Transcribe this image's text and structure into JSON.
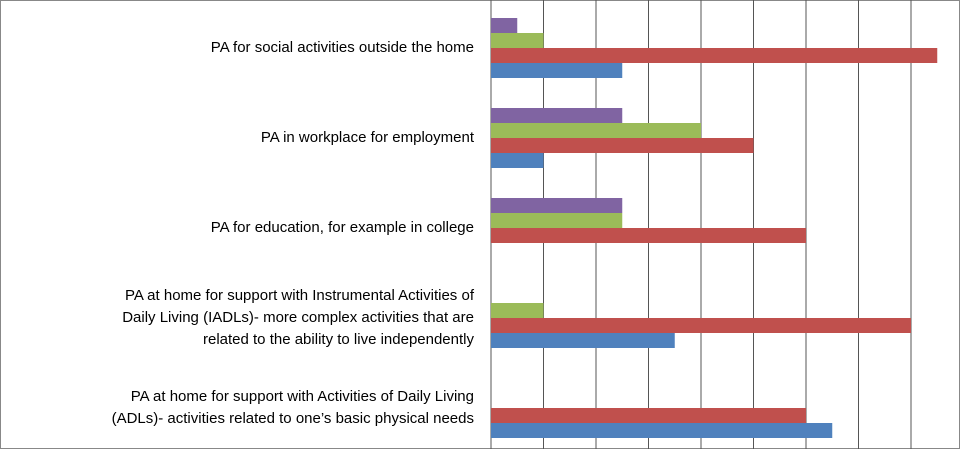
{
  "chart_data": {
    "type": "bar",
    "orientation": "horizontal",
    "categories": [
      "PA for social activities outside the home",
      "PA in workplace for employment",
      "PA for education, for example in college",
      "PA at home for support with Instrumental Activities of\nDaily Living (IADLs)-  more complex activities that are\nrelated to the ability to live independently",
      "PA at home for support with Activities of Daily Living\n(ADLs)- activities related to one’s basic physical needs"
    ],
    "series": [
      {
        "color": "#8064a2",
        "values": [
          0.5,
          2.5,
          2.5,
          0,
          0
        ]
      },
      {
        "color": "#9bbb59",
        "values": [
          1,
          4,
          2.5,
          1,
          0
        ]
      },
      {
        "color": "#c0504d",
        "values": [
          8.5,
          5,
          6,
          8,
          6
        ]
      },
      {
        "color": "#4f81bd",
        "values": [
          2.5,
          1,
          0,
          3.5,
          6.5
        ]
      }
    ],
    "xlim": [
      0,
      8.9
    ],
    "xticks": [
      0,
      1,
      2,
      3,
      4,
      5,
      6,
      7,
      8
    ],
    "grid": true
  }
}
